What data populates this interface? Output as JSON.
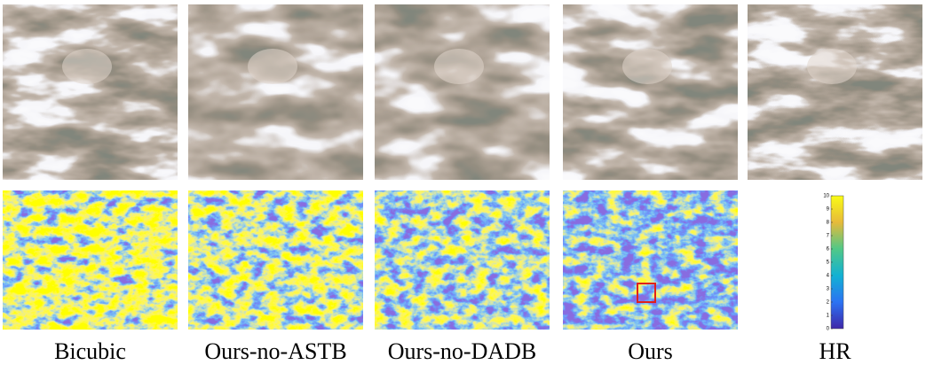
{
  "columns": [
    {
      "label": "Bicubic"
    },
    {
      "label": "Ours-no-ASTB"
    },
    {
      "label": "Ours-no-DADB"
    },
    {
      "label": "Ours"
    },
    {
      "label": "HR"
    }
  ],
  "colorbar": {
    "ticks": [
      0,
      1,
      2,
      3,
      4,
      5,
      6,
      7,
      8,
      9,
      10
    ]
  }
}
